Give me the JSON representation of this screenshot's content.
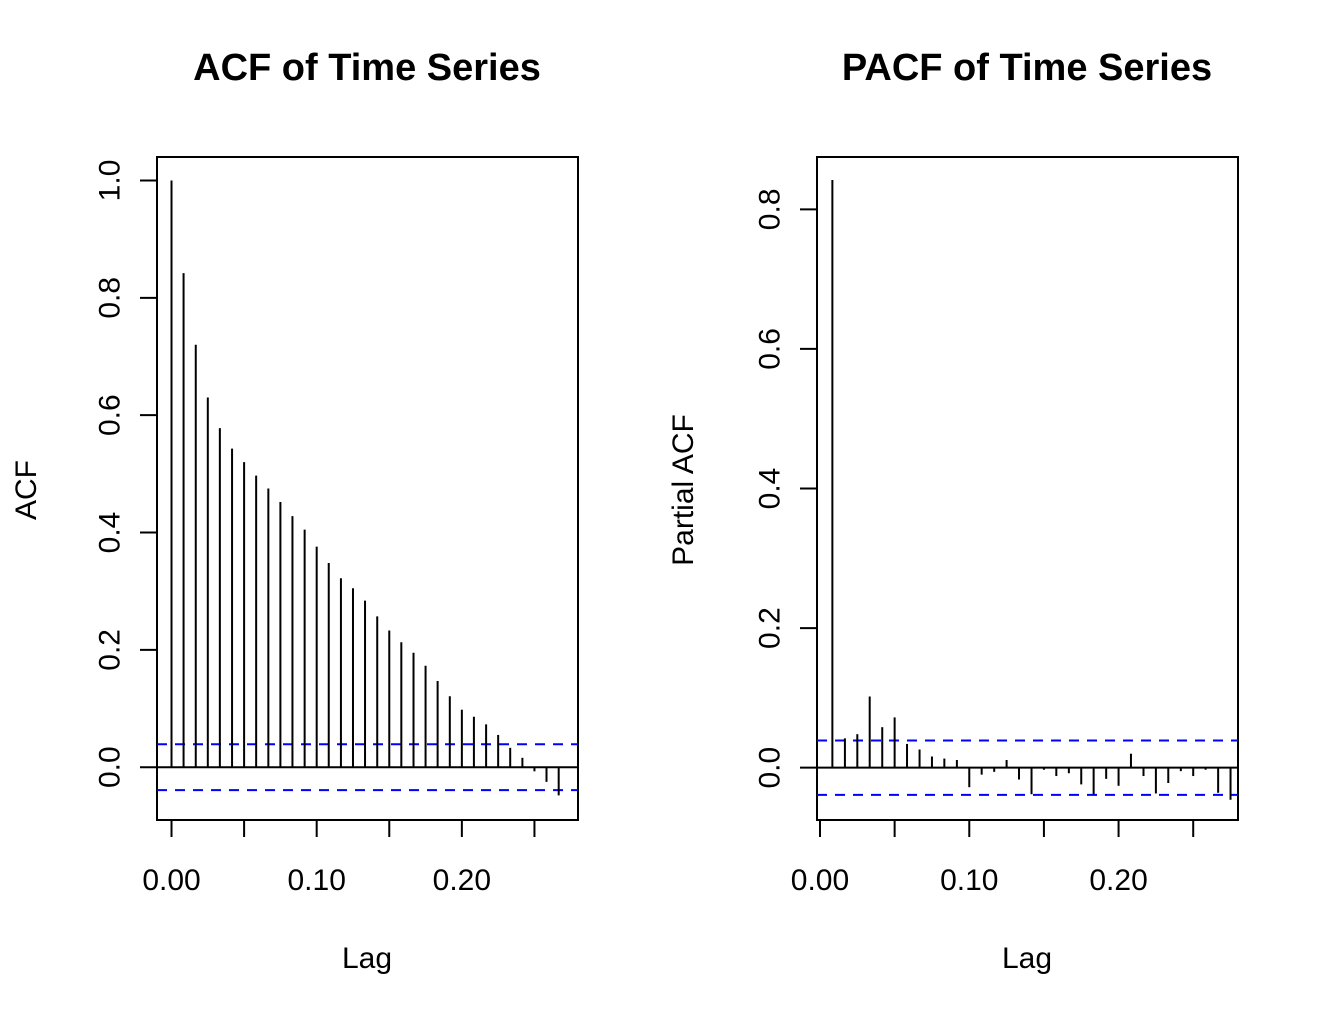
{
  "chart_data": [
    {
      "type": "bar",
      "title": "ACF of Time Series",
      "xlabel": "Lag",
      "ylabel": "ACF",
      "xlim": [
        -0.01,
        0.28
      ],
      "ylim": [
        -0.09,
        1.04
      ],
      "x_ticks": [
        0.0,
        0.05,
        0.1,
        0.15,
        0.2,
        0.25
      ],
      "x_tick_labels": [
        "0.00",
        "",
        "0.10",
        "",
        "0.20",
        ""
      ],
      "y_ticks": [
        0.0,
        0.2,
        0.4,
        0.6,
        0.8,
        1.0
      ],
      "y_tick_labels": [
        "0.0",
        "0.2",
        "0.4",
        "0.6",
        "0.8",
        "1.0"
      ],
      "confidence_band": [
        -0.039,
        0.039
      ],
      "confidence_color": "#0000ff",
      "x": [
        0.0,
        0.0083,
        0.0167,
        0.025,
        0.0333,
        0.0417,
        0.05,
        0.0583,
        0.0667,
        0.075,
        0.0833,
        0.0917,
        0.1,
        0.1083,
        0.1167,
        0.125,
        0.1333,
        0.1417,
        0.15,
        0.1583,
        0.1667,
        0.175,
        0.1833,
        0.1917,
        0.2,
        0.2083,
        0.2167,
        0.225,
        0.2333,
        0.2417,
        0.25,
        0.2583,
        0.2667
      ],
      "values": [
        1.0,
        0.842,
        0.72,
        0.63,
        0.578,
        0.543,
        0.52,
        0.497,
        0.475,
        0.452,
        0.428,
        0.405,
        0.376,
        0.348,
        0.322,
        0.305,
        0.284,
        0.257,
        0.233,
        0.213,
        0.195,
        0.173,
        0.147,
        0.121,
        0.098,
        0.086,
        0.073,
        0.055,
        0.033,
        0.016,
        -0.007,
        -0.025,
        -0.048
      ]
    },
    {
      "type": "bar",
      "title": "PACF of Time Series",
      "xlabel": "Lag",
      "ylabel": "Partial ACF",
      "xlim": [
        -0.002,
        0.28
      ],
      "ylim": [
        -0.075,
        0.875
      ],
      "x_ticks": [
        0.0,
        0.05,
        0.1,
        0.15,
        0.2,
        0.25
      ],
      "x_tick_labels": [
        "0.00",
        "",
        "0.10",
        "",
        "0.20",
        ""
      ],
      "y_ticks": [
        0.0,
        0.2,
        0.4,
        0.6,
        0.8
      ],
      "y_tick_labels": [
        "0.0",
        "0.2",
        "0.4",
        "0.6",
        "0.8"
      ],
      "confidence_band": [
        -0.039,
        0.039
      ],
      "confidence_color": "#0000ff",
      "x": [
        0.0083,
        0.0167,
        0.025,
        0.0333,
        0.0417,
        0.05,
        0.0583,
        0.0667,
        0.075,
        0.0833,
        0.0917,
        0.1,
        0.1083,
        0.1167,
        0.125,
        0.1333,
        0.1417,
        0.15,
        0.1583,
        0.1667,
        0.175,
        0.1833,
        0.1917,
        0.2,
        0.2083,
        0.2167,
        0.225,
        0.2333,
        0.2417,
        0.25,
        0.2583,
        0.2667,
        0.275
      ],
      "values": [
        0.842,
        0.042,
        0.048,
        0.102,
        0.058,
        0.072,
        0.034,
        0.026,
        0.016,
        0.013,
        0.011,
        -0.028,
        -0.01,
        -0.006,
        0.011,
        -0.017,
        -0.038,
        -0.003,
        -0.012,
        -0.008,
        -0.024,
        -0.038,
        -0.016,
        -0.026,
        0.02,
        -0.012,
        -0.037,
        -0.022,
        -0.005,
        -0.012,
        -0.003,
        -0.036,
        -0.046
      ]
    }
  ]
}
